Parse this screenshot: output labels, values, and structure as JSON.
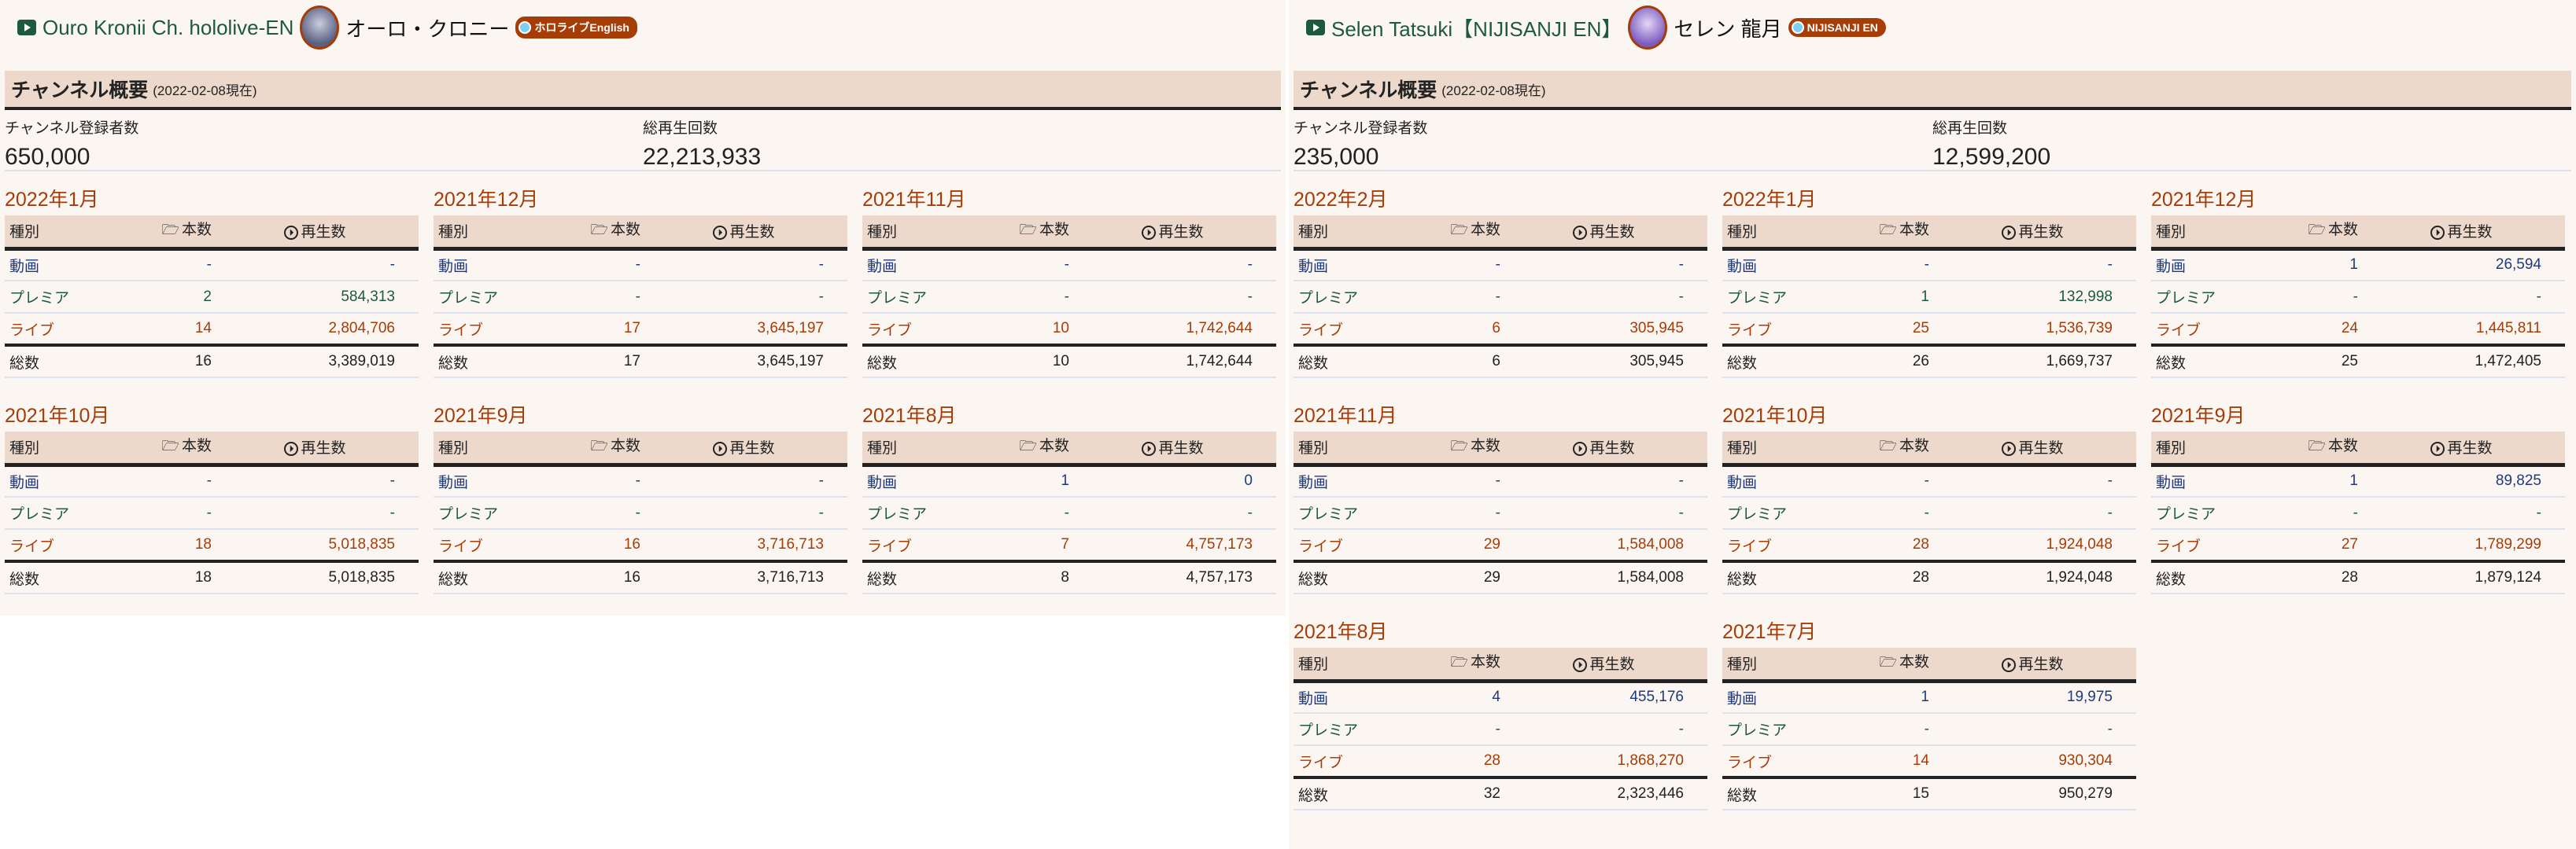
{
  "colors": {
    "accent": "#a63c06",
    "premiere": "#1d5a3c",
    "video": "#1f3a7a",
    "header_bg": "#ecd9cc",
    "page_bg": "#fcf6f3"
  },
  "table_headers": {
    "type": "種別",
    "count": "本数",
    "views": "再生数",
    "count_icon": "folder-icon",
    "views_icon": "play-circle-icon"
  },
  "row_labels": [
    "動画",
    "プレミア",
    "ライブ",
    "総数"
  ],
  "channels": [
    {
      "name": "Ouro Kronii Ch. hololive-EN",
      "name_ja": "オーロ・クロニー",
      "badge": "ホロライブEnglish",
      "overview_title": "チャンネル概要",
      "as_of": "(2022-02-08現在)",
      "subs_label": "チャンネル登録者数",
      "subs": "650,000",
      "views_label": "総再生回数",
      "views": "22,213,933",
      "months": [
        {
          "title": "2022年1月",
          "rows": [
            [
              "-",
              "-"
            ],
            [
              "2",
              "584,313"
            ],
            [
              "14",
              "2,804,706"
            ],
            [
              "16",
              "3,389,019"
            ]
          ]
        },
        {
          "title": "2021年12月",
          "rows": [
            [
              "-",
              "-"
            ],
            [
              "-",
              "-"
            ],
            [
              "17",
              "3,645,197"
            ],
            [
              "17",
              "3,645,197"
            ]
          ]
        },
        {
          "title": "2021年11月",
          "rows": [
            [
              "-",
              "-"
            ],
            [
              "-",
              "-"
            ],
            [
              "10",
              "1,742,644"
            ],
            [
              "10",
              "1,742,644"
            ]
          ]
        },
        {
          "title": "2021年10月",
          "rows": [
            [
              "-",
              "-"
            ],
            [
              "-",
              "-"
            ],
            [
              "18",
              "5,018,835"
            ],
            [
              "18",
              "5,018,835"
            ]
          ]
        },
        {
          "title": "2021年9月",
          "rows": [
            [
              "-",
              "-"
            ],
            [
              "-",
              "-"
            ],
            [
              "16",
              "3,716,713"
            ],
            [
              "16",
              "3,716,713"
            ]
          ]
        },
        {
          "title": "2021年8月",
          "rows": [
            [
              "1",
              "0"
            ],
            [
              "-",
              "-"
            ],
            [
              "7",
              "4,757,173"
            ],
            [
              "8",
              "4,757,173"
            ]
          ]
        }
      ]
    },
    {
      "name": "Selen Tatsuki【NIJISANJI EN】",
      "name_ja": "セレン 龍月",
      "badge": "NIJISANJI EN",
      "overview_title": "チャンネル概要",
      "as_of": "(2022-02-08現在)",
      "subs_label": "チャンネル登録者数",
      "subs": "235,000",
      "views_label": "総再生回数",
      "views": "12,599,200",
      "months": [
        {
          "title": "2022年2月",
          "rows": [
            [
              "-",
              "-"
            ],
            [
              "-",
              "-"
            ],
            [
              "6",
              "305,945"
            ],
            [
              "6",
              "305,945"
            ]
          ]
        },
        {
          "title": "2022年1月",
          "rows": [
            [
              "-",
              "-"
            ],
            [
              "1",
              "132,998"
            ],
            [
              "25",
              "1,536,739"
            ],
            [
              "26",
              "1,669,737"
            ]
          ]
        },
        {
          "title": "2021年12月",
          "rows": [
            [
              "1",
              "26,594"
            ],
            [
              "-",
              "-"
            ],
            [
              "24",
              "1,445,811"
            ],
            [
              "25",
              "1,472,405"
            ]
          ]
        },
        {
          "title": "2021年11月",
          "rows": [
            [
              "-",
              "-"
            ],
            [
              "-",
              "-"
            ],
            [
              "29",
              "1,584,008"
            ],
            [
              "29",
              "1,584,008"
            ]
          ]
        },
        {
          "title": "2021年10月",
          "rows": [
            [
              "-",
              "-"
            ],
            [
              "-",
              "-"
            ],
            [
              "28",
              "1,924,048"
            ],
            [
              "28",
              "1,924,048"
            ]
          ]
        },
        {
          "title": "2021年9月",
          "rows": [
            [
              "1",
              "89,825"
            ],
            [
              "-",
              "-"
            ],
            [
              "27",
              "1,789,299"
            ],
            [
              "28",
              "1,879,124"
            ]
          ]
        },
        {
          "title": "2021年8月",
          "rows": [
            [
              "4",
              "455,176"
            ],
            [
              "-",
              "-"
            ],
            [
              "28",
              "1,868,270"
            ],
            [
              "32",
              "2,323,446"
            ]
          ]
        },
        {
          "title": "2021年7月",
          "rows": [
            [
              "1",
              "19,975"
            ],
            [
              "-",
              "-"
            ],
            [
              "14",
              "930,304"
            ],
            [
              "15",
              "950,279"
            ]
          ]
        }
      ]
    }
  ]
}
